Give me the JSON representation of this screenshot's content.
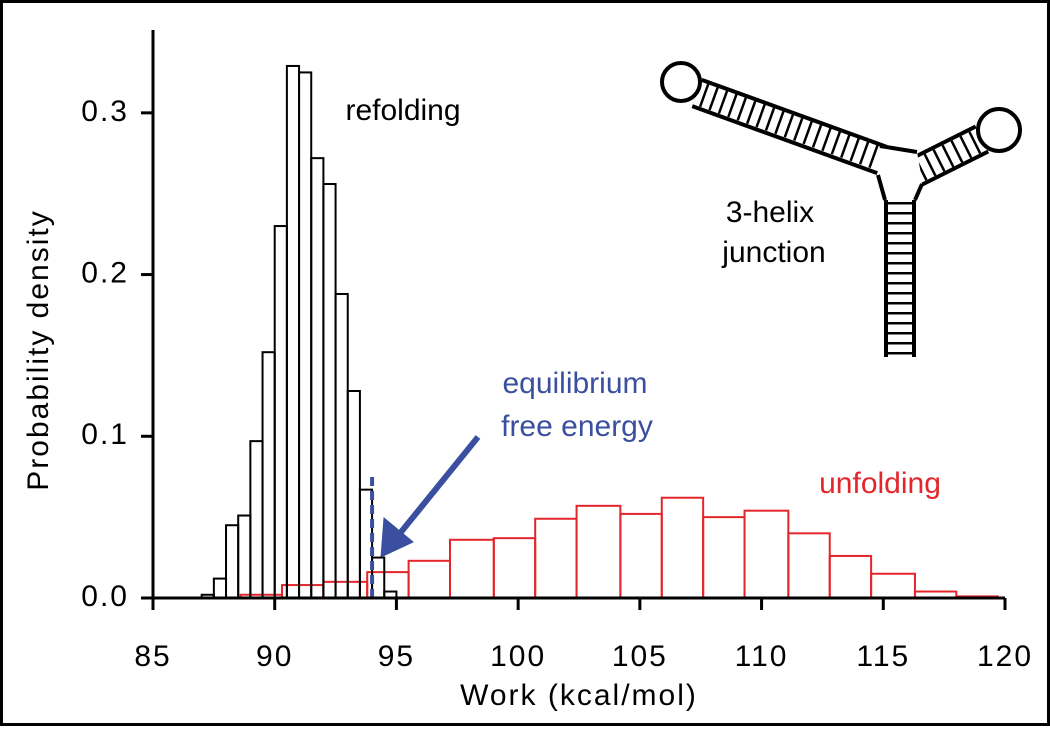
{
  "chart_data": {
    "type": "histogram",
    "xlabel": "Work (kcal/mol)",
    "ylabel": "Probability density",
    "xlim": [
      85,
      120
    ],
    "ylim": [
      0,
      0.35
    ],
    "xticks": [
      85,
      90,
      95,
      100,
      105,
      110,
      115,
      120
    ],
    "yticks": [
      {
        "value": 0,
        "label": "0.0"
      },
      0.1,
      0.2,
      0.3
    ],
    "series": [
      {
        "name": "unfolding",
        "color": "#e3262b",
        "bins": [
          88.6,
          90.3,
          92.0,
          93.8,
          95.5,
          97.2,
          99.0,
          100.7,
          102.4,
          104.2,
          105.9,
          107.6,
          109.3,
          111.1,
          112.8,
          114.5,
          116.3,
          118.0,
          119.7
        ],
        "values": [
          0.002,
          0.008,
          0.01,
          0.016,
          0.023,
          0.036,
          0.037,
          0.049,
          0.057,
          0.052,
          0.062,
          0.05,
          0.054,
          0.04,
          0.026,
          0.015,
          0.004,
          0.001
        ]
      },
      {
        "name": "refolding",
        "color": "#000000",
        "bins": [
          87,
          87.5,
          88,
          88.5,
          89,
          89.5,
          90,
          90.5,
          91,
          91.5,
          92,
          92.5,
          93,
          93.5,
          94,
          94.5,
          95
        ],
        "values": [
          0.002,
          0.012,
          0.045,
          0.051,
          0.097,
          0.152,
          0.23,
          0.329,
          0.325,
          0.272,
          0.256,
          0.188,
          0.128,
          0.067,
          0.025,
          0.004
        ]
      }
    ],
    "annotation": {
      "x": 94,
      "text": [
        "equilibrium",
        "free energy"
      ],
      "color": "#3a4f9f"
    },
    "inset": {
      "label": [
        "3-helix",
        "junction"
      ]
    }
  }
}
